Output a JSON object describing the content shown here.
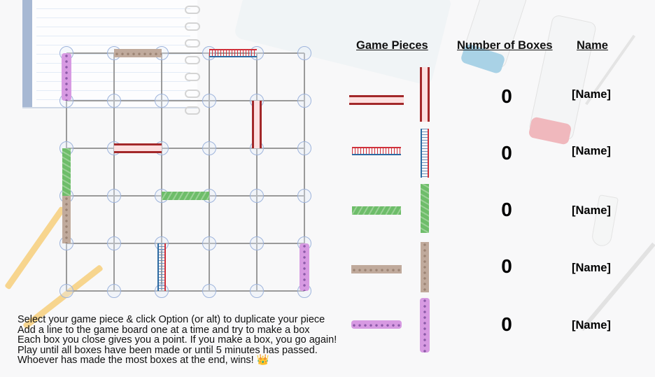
{
  "headers": {
    "game_pieces": "Game Pieces",
    "number_of_boxes": "Number of Boxes",
    "name": "Name"
  },
  "players": [
    {
      "piece": "red-tube",
      "color": "#a3282a",
      "boxes": "0",
      "name": "[Name]"
    },
    {
      "piece": "dna-ladder",
      "color": "#2d6aa2",
      "boxes": "0",
      "name": "[Name]"
    },
    {
      "piece": "green-striped",
      "color": "#6ebd6a",
      "boxes": "0",
      "name": "[Name]"
    },
    {
      "piece": "tan-cells",
      "color": "#c0aa9c",
      "boxes": "0",
      "name": "[Name]"
    },
    {
      "piece": "purple-cells",
      "color": "#d79ae2",
      "boxes": "0",
      "name": "[Name]"
    }
  ],
  "board": {
    "grid_columns": 6,
    "grid_rows": 6,
    "placed_pieces": [
      {
        "piece": "purple-cells",
        "orientation": "vertical",
        "from": [
          0,
          0
        ],
        "to": [
          0,
          1
        ]
      },
      {
        "piece": "tan-cells",
        "orientation": "horizontal",
        "from": [
          1,
          0
        ],
        "to": [
          2,
          0
        ]
      },
      {
        "piece": "dna-ladder",
        "orientation": "horizontal",
        "from": [
          3,
          0
        ],
        "to": [
          4,
          0
        ]
      },
      {
        "piece": "red-tube",
        "orientation": "vertical",
        "from": [
          4,
          1
        ],
        "to": [
          4,
          2
        ]
      },
      {
        "piece": "red-tube",
        "orientation": "horizontal",
        "from": [
          1,
          2
        ],
        "to": [
          2,
          2
        ]
      },
      {
        "piece": "green-striped",
        "orientation": "vertical",
        "from": [
          0,
          2
        ],
        "to": [
          0,
          3
        ]
      },
      {
        "piece": "green-striped",
        "orientation": "horizontal",
        "from": [
          2,
          3
        ],
        "to": [
          3,
          3
        ]
      },
      {
        "piece": "tan-cells",
        "orientation": "vertical",
        "from": [
          0,
          3
        ],
        "to": [
          0,
          4
        ]
      },
      {
        "piece": "dna-ladder",
        "orientation": "vertical",
        "from": [
          2,
          4
        ],
        "to": [
          2,
          5
        ]
      },
      {
        "piece": "purple-cells",
        "orientation": "vertical",
        "from": [
          5,
          4
        ],
        "to": [
          5,
          5
        ]
      }
    ]
  },
  "instructions": [
    "Select your game piece & click Option (or alt) to duplicate your piece",
    "Add a line to the game board one at a time and try to make a box",
    "Each box you close gives you a point. If you make a box, you go again!",
    "Play until all boxes have been made or until 5 minutes has passed.",
    "Whoever has made the most boxes at the end, wins! 👑"
  ]
}
